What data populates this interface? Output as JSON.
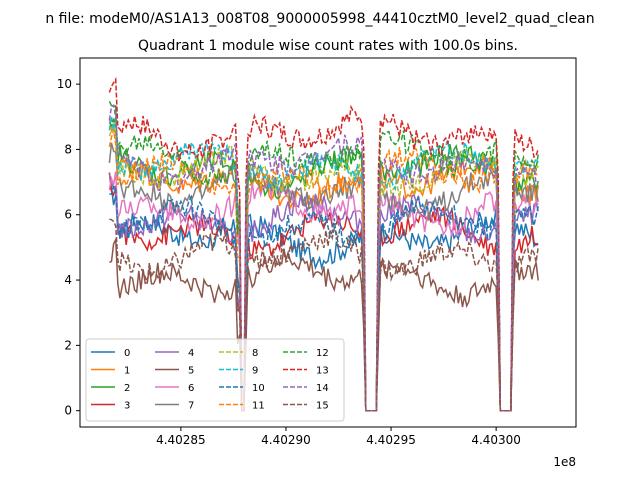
{
  "suptitle": "n file: modeM0/AS1A13_008T08_9000005998_44410cztM0_level2_quad_clean",
  "chart_data": {
    "type": "line",
    "title": "Quadrant 1 module wise count rates with 100.0s bins.",
    "xlabel": "",
    "ylabel": "",
    "x_offset_label": "1e8",
    "x_range": [
      4.402802,
      4.403038
    ],
    "ylim": [
      -0.5,
      10.8
    ],
    "x_ticks": [
      4.40285,
      4.4029,
      4.40295,
      4.403
    ],
    "x_tick_labels": [
      "4.40285",
      "4.40290",
      "4.40295",
      "4.40300"
    ],
    "y_ticks": [
      0,
      2,
      4,
      6,
      8,
      10
    ],
    "y_tick_labels": [
      "0",
      "2",
      "4",
      "6",
      "8",
      "10"
    ],
    "x_start": 4.402816,
    "x_end": 4.40302,
    "bin_width": 1e-06,
    "gaps": [
      [
        4.402878,
        4.40288
      ],
      [
        4.402938,
        4.402943
      ],
      [
        4.403002,
        4.403007
      ]
    ],
    "legend_placement": "lower-left",
    "grid": false,
    "series": [
      {
        "name": "0",
        "color": "#1f77b4",
        "dash": false,
        "mean": 5.3
      },
      {
        "name": "1",
        "color": "#ff7f0e",
        "dash": false,
        "mean": 7.0
      },
      {
        "name": "2",
        "color": "#2ca02c",
        "dash": false,
        "mean": 7.4
      },
      {
        "name": "3",
        "color": "#d62728",
        "dash": false,
        "mean": 5.5
      },
      {
        "name": "4",
        "color": "#9467bd",
        "dash": false,
        "mean": 5.9
      },
      {
        "name": "5",
        "color": "#8c564b",
        "dash": false,
        "mean": 4.1
      },
      {
        "name": "6",
        "color": "#e377c2",
        "dash": false,
        "mean": 6.2
      },
      {
        "name": "7",
        "color": "#7f7f7f",
        "dash": false,
        "mean": 6.7
      },
      {
        "name": "8",
        "color": "#bcbd22",
        "dash": true,
        "mean": 7.3
      },
      {
        "name": "9",
        "color": "#17becf",
        "dash": true,
        "mean": 7.5
      },
      {
        "name": "10",
        "color": "#1f77b4",
        "dash": true,
        "mean": 5.7
      },
      {
        "name": "11",
        "color": "#ff7f0e",
        "dash": true,
        "mean": 7.2
      },
      {
        "name": "12",
        "color": "#2ca02c",
        "dash": true,
        "mean": 7.8
      },
      {
        "name": "13",
        "color": "#d62728",
        "dash": true,
        "mean": 8.5
      },
      {
        "name": "14",
        "color": "#9467bd",
        "dash": true,
        "mean": 7.6
      },
      {
        "name": "15",
        "color": "#8c564b",
        "dash": true,
        "mean": 4.8
      }
    ]
  }
}
